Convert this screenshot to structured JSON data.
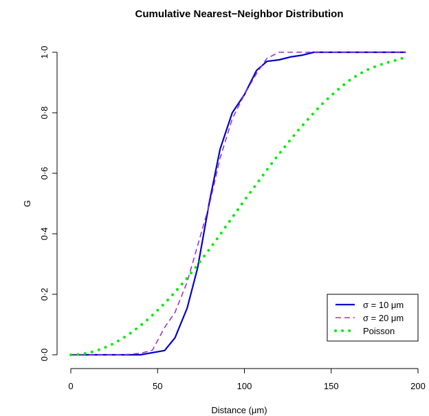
{
  "chart_data": {
    "type": "line",
    "title": "Cumulative Nearest−Neighbor Distribution",
    "xlabel": "Distance (μm)",
    "ylabel": "G",
    "xlim": [
      0,
      200
    ],
    "ylim": [
      0,
      1
    ],
    "x_ticks": [
      0,
      50,
      100,
      150,
      200
    ],
    "y_ticks": [
      0,
      0.2,
      0.4,
      0.6,
      0.8,
      1.0
    ],
    "x_tick_labels": [
      "0",
      "50",
      "100",
      "150",
      "200"
    ],
    "y_tick_labels": [
      "0·0",
      "0·2",
      "0·4",
      "0·6",
      "0·8",
      "1·0"
    ],
    "legend_position": "bottom-right",
    "series": [
      {
        "name": "σ = 10 μm",
        "color": "#0000cc",
        "style": "solid",
        "x": [
          0,
          10,
          20,
          30,
          40,
          54,
          60,
          67,
          73,
          80,
          86,
          93,
          100,
          107,
          113,
          120,
          127,
          133,
          140,
          150,
          160,
          170,
          180,
          193
        ],
        "y": [
          0,
          0,
          0,
          0,
          0,
          0.014,
          0.056,
          0.154,
          0.286,
          0.51,
          0.68,
          0.8,
          0.86,
          0.94,
          0.97,
          0.975,
          0.985,
          0.99,
          1.0,
          1.0,
          1.0,
          1.0,
          1.0,
          1.0
        ]
      },
      {
        "name": "σ = 20 μm",
        "color": "#9933cc",
        "style": "dashed",
        "x": [
          0,
          10,
          20,
          30,
          40,
          47,
          54,
          60,
          67,
          73,
          80,
          86,
          93,
          100,
          107,
          113,
          120,
          127,
          133,
          140,
          150,
          160,
          170,
          180,
          193
        ],
        "y": [
          0,
          0,
          0,
          0,
          0.005,
          0.015,
          0.09,
          0.14,
          0.24,
          0.36,
          0.5,
          0.65,
          0.78,
          0.86,
          0.93,
          0.98,
          1.0,
          1.0,
          1.0,
          1.0,
          1.0,
          1.0,
          1.0,
          1.0,
          1.0
        ]
      },
      {
        "name": "Poisson",
        "color": "#00ee00",
        "style": "dotted",
        "x": [
          0,
          5,
          10,
          15,
          20,
          25,
          30,
          35,
          40,
          45,
          50,
          55,
          60,
          65,
          70,
          75,
          80,
          85,
          90,
          95,
          100,
          105,
          110,
          115,
          120,
          125,
          130,
          135,
          140,
          145,
          150,
          155,
          160,
          165,
          170,
          175,
          180,
          185,
          190,
          193
        ],
        "y": [
          0,
          0.0015,
          0.006,
          0.014,
          0.025,
          0.038,
          0.055,
          0.074,
          0.096,
          0.12,
          0.147,
          0.176,
          0.207,
          0.24,
          0.275,
          0.312,
          0.35,
          0.389,
          0.43,
          0.47,
          0.51,
          0.549,
          0.588,
          0.627,
          0.664,
          0.7,
          0.735,
          0.768,
          0.8,
          0.83,
          0.857,
          0.882,
          0.905,
          0.924,
          0.94,
          0.952,
          0.962,
          0.97,
          0.978,
          0.985
        ]
      }
    ]
  }
}
